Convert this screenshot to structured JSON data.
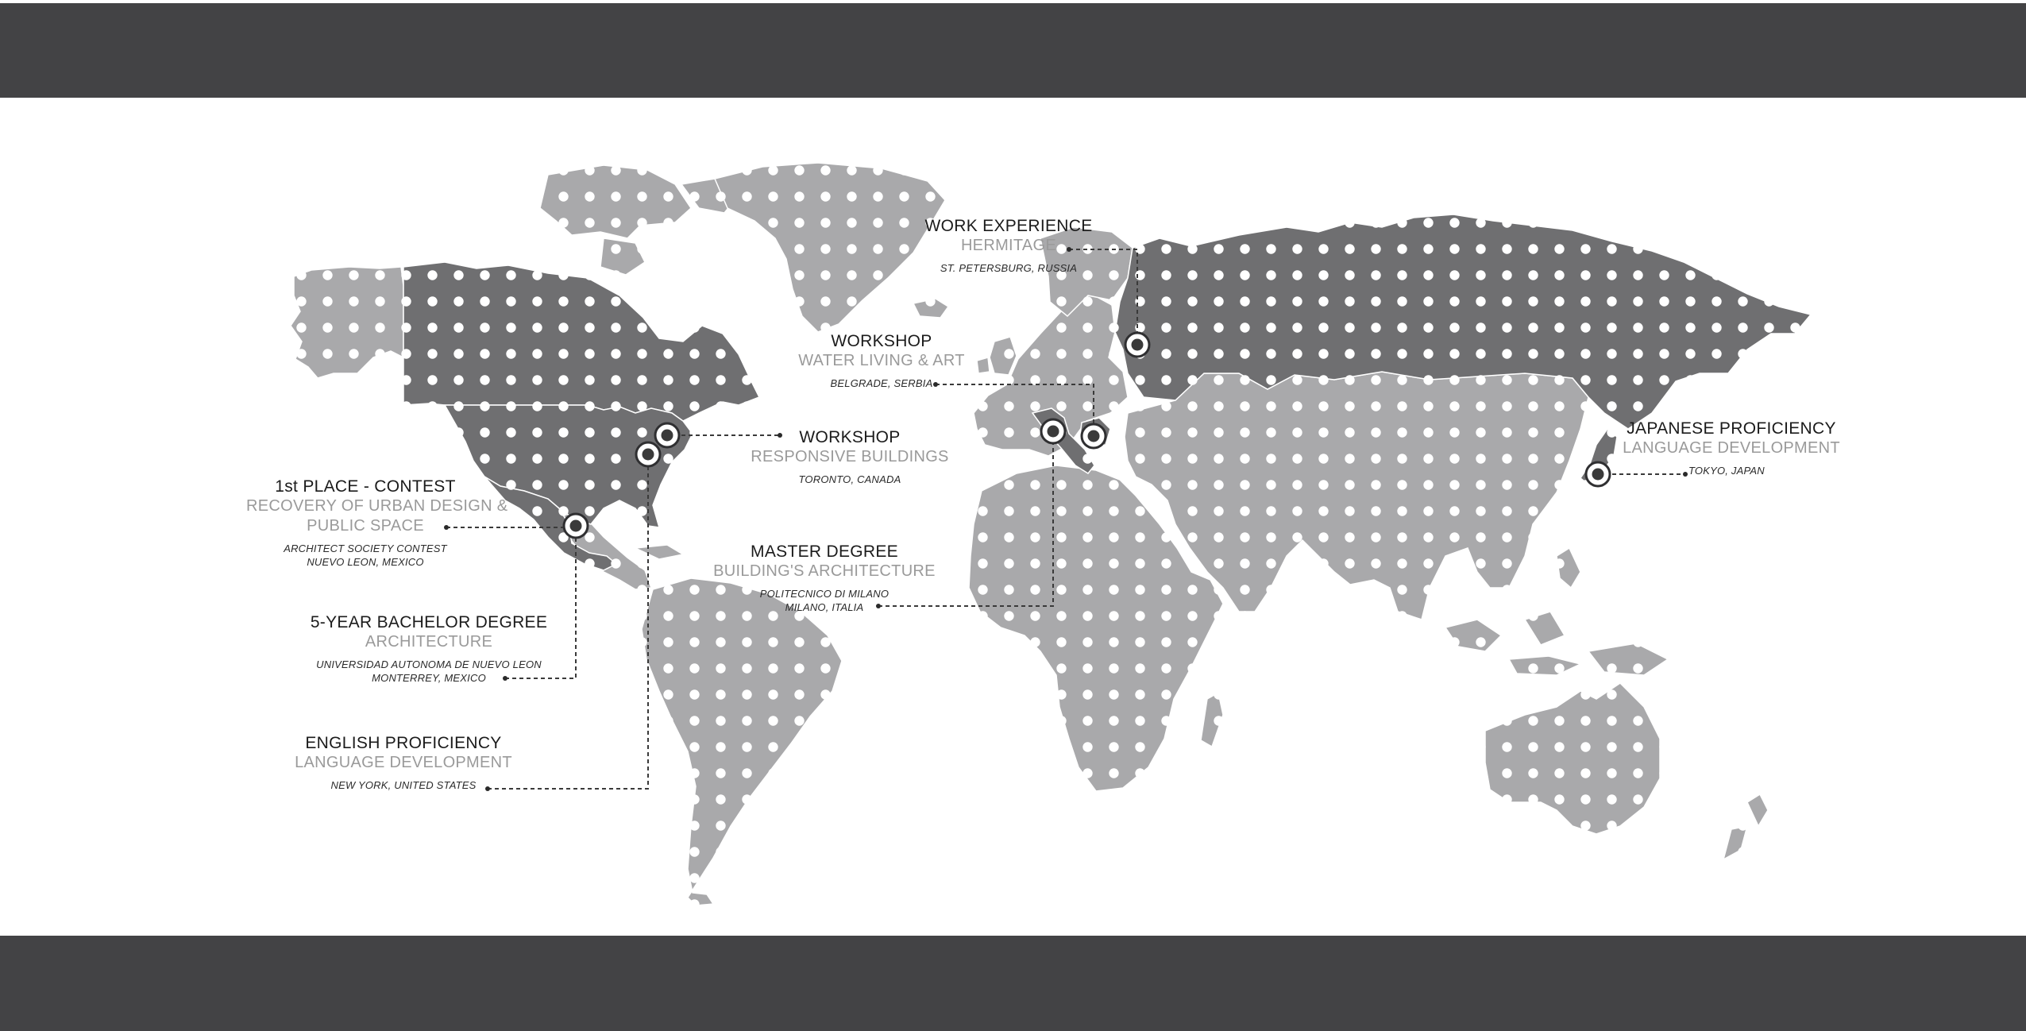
{
  "colors": {
    "band": "#434345",
    "highlight_country": "#6f6f71",
    "other_land": "#a9a9ab",
    "dot": "#ffffff",
    "leader": "#3a3a3a"
  },
  "markers": [
    {
      "id": "work-experience",
      "title": "WORK EXPERIENCE",
      "subtitle": "HERMITAGE",
      "details": [
        "ST. PETERSBURG, RUSSIA"
      ]
    },
    {
      "id": "workshop-belgrade",
      "title": "WORKSHOP",
      "subtitle": "WATER LIVING & ART",
      "details": [
        "BELGRADE, SERBIA"
      ]
    },
    {
      "id": "workshop-toronto",
      "title": "WORKSHOP",
      "subtitle": "RESPONSIVE BUILDINGS",
      "details": [
        "TORONTO, CANADA"
      ]
    },
    {
      "id": "contest",
      "title": "1st PLACE - CONTEST",
      "subtitle": "RECOVERY OF URBAN DESIGN &",
      "subtitle2": "PUBLIC SPACE",
      "details": [
        "ARCHITECT SOCIETY CONTEST",
        "NUEVO LEON, MEXICO"
      ]
    },
    {
      "id": "master",
      "title": "MASTER DEGREE",
      "subtitle": "BUILDING'S ARCHITECTURE",
      "details": [
        "POLITECNICO DI MILANO",
        "MILANO, ITALIA"
      ]
    },
    {
      "id": "japanese",
      "title": "JAPANESE PROFICIENCY",
      "subtitle": "LANGUAGE DEVELOPMENT",
      "details": [
        "TOKYO, JAPAN"
      ]
    },
    {
      "id": "bachelor",
      "title": "5-YEAR BACHELOR DEGREE",
      "subtitle": "ARCHITECTURE",
      "details": [
        "UNIVERSIDAD AUTONOMA DE NUEVO LEON",
        "MONTERREY, MEXICO"
      ]
    },
    {
      "id": "english",
      "title": "ENGLISH PROFICIENCY",
      "subtitle": "LANGUAGE DEVELOPMENT",
      "details": [
        "NEW YORK, UNITED STATES"
      ]
    }
  ]
}
